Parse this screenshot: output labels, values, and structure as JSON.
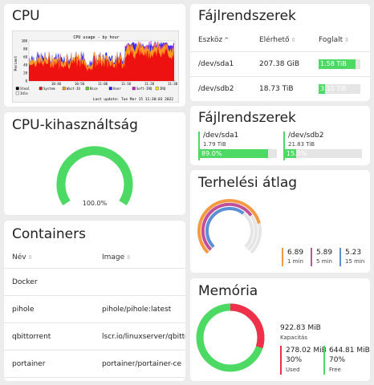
{
  "cpu": {
    "title": "CPU",
    "graph": {
      "title": "CPU usage - by hour",
      "ylabel": "Percent",
      "yticks": [
        "100",
        "80",
        "60",
        "40",
        "20",
        "0"
      ],
      "xticks": [
        "10:40",
        "10:50",
        "11:00",
        "11:10",
        "11:20",
        "11:30"
      ],
      "legend": [
        "Steal",
        "System",
        "Wait-IO",
        "Nice",
        "User",
        "Soft-IRQ",
        "IRQ",
        "Idle"
      ],
      "legend_colors": [
        "#000000",
        "#ee1111",
        "#ff9922",
        "#55dd22",
        "#2222ff",
        "#cc22cc",
        "#ffee00",
        "#ffffff"
      ],
      "last_update": "Last update: Tue Mar 15 11:30:03 2022"
    }
  },
  "fs_table": {
    "title": "Fájlrendszerek",
    "columns": [
      "Eszköz",
      "Elérhető",
      "Foglalt"
    ],
    "rows": [
      {
        "device": "/dev/sda1",
        "available": "207.38 GiB",
        "used": "1.58 TiB",
        "used_fraction": 0.89
      },
      {
        "device": "/dev/sdb2",
        "available": "18.73 TiB",
        "used": "3.10 TiB",
        "used_fraction": 0.15
      }
    ]
  },
  "cpu_usage": {
    "title": "CPU-kihasználtság",
    "value": "100.0%",
    "fraction": 1.0,
    "color": "#4cd964"
  },
  "fs_bars": {
    "title": "Fájlrendszerek",
    "items": [
      {
        "device": "/dev/sda1",
        "size": "1.79 TiB",
        "percent": "89.0%",
        "fraction": 0.89
      },
      {
        "device": "/dev/sdb2",
        "size": "21.83 TiB",
        "percent": "15.0%",
        "fraction": 0.15
      }
    ]
  },
  "load": {
    "title": "Terhelési átlag",
    "items": [
      {
        "value": "6.89",
        "label": "1 min",
        "color": "#f59a42",
        "fraction": 0.78
      },
      {
        "value": "5.89",
        "label": "5 min",
        "color": "#c0509a",
        "fraction": 0.7
      },
      {
        "value": "5.23",
        "label": "15 min",
        "color": "#5b8fd6",
        "fraction": 0.64
      }
    ]
  },
  "containers": {
    "title": "Containers",
    "columns": [
      "Név",
      "Image"
    ],
    "rows": [
      {
        "name": "Docker",
        "image": ""
      },
      {
        "name": "pihole",
        "image": "pihole/pihole:latest"
      },
      {
        "name": "qbittorrent",
        "image": "lscr.io/linuxserver/qbittorrent"
      },
      {
        "name": "portainer",
        "image": "portainer/portainer-ce"
      }
    ]
  },
  "memory": {
    "title": "Memória",
    "capacity": "922.83 MiB",
    "capacity_label": "Kapacitás",
    "used": {
      "value": "278.02 MiB",
      "percent": "30%",
      "label": "Used",
      "color": "#f0304a",
      "fraction": 0.3
    },
    "free": {
      "value": "644.81 MiB",
      "percent": "70%",
      "label": "Free",
      "color": "#4cd964",
      "fraction": 0.7
    }
  }
}
